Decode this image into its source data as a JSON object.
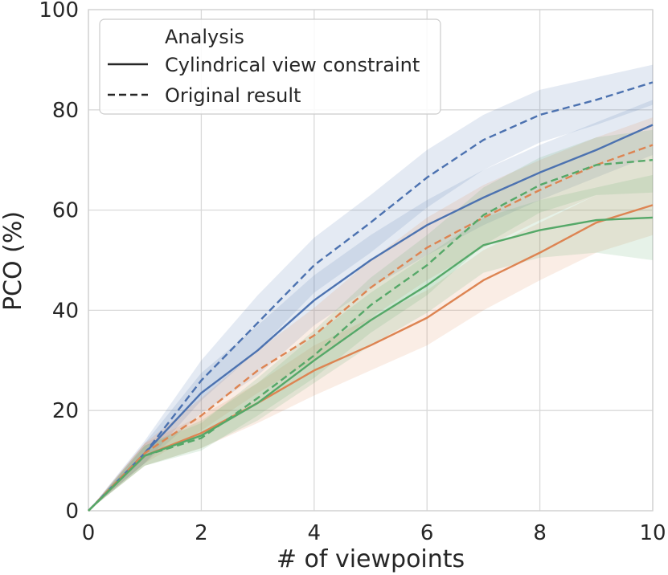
{
  "chart_data": {
    "type": "line",
    "title": "",
    "xlabel": "# of viewpoints",
    "ylabel": "PCO (%)",
    "xlim": [
      0,
      10
    ],
    "ylim": [
      0,
      100
    ],
    "xticks": [
      0,
      2,
      4,
      6,
      8,
      10
    ],
    "yticks": [
      0,
      20,
      40,
      60,
      80,
      100
    ],
    "grid": true,
    "legend": {
      "placement": "top-left",
      "title": "Analysis",
      "entries": [
        {
          "label": "Cylindrical view constraint",
          "style": "solid"
        },
        {
          "label": "Original result",
          "style": "dashed"
        }
      ]
    },
    "series": [
      {
        "color": "#4c72b0",
        "style": "solid",
        "x": [
          0,
          1,
          2,
          3,
          4,
          5,
          6,
          7,
          8,
          9,
          10
        ],
        "values": [
          0,
          11.5,
          23.5,
          32,
          42,
          50,
          57,
          62.5,
          67.5,
          72,
          77
        ],
        "band_low": [
          0,
          9.5,
          19.5,
          27,
          37,
          44.5,
          51,
          57,
          62,
          66.5,
          71
        ],
        "band_high": [
          0,
          13.5,
          27.5,
          37,
          47,
          55,
          62,
          68,
          73,
          77.5,
          82
        ]
      },
      {
        "color": "#4c72b0",
        "style": "dashed",
        "x": [
          0,
          1,
          2,
          3,
          4,
          5,
          6,
          7,
          8,
          9,
          10
        ],
        "values": [
          0,
          11.5,
          26,
          37.5,
          49,
          57.5,
          66.5,
          74,
          79,
          82,
          85.5
        ],
        "band_low": [
          0,
          9.5,
          22,
          32,
          43.5,
          51.5,
          60.5,
          68,
          73.5,
          77,
          81
        ],
        "band_high": [
          0,
          14,
          30,
          43,
          54.5,
          63,
          72,
          79,
          84,
          86.5,
          89
        ]
      },
      {
        "color": "#dd8452",
        "style": "solid",
        "x": [
          0,
          1,
          2,
          3,
          4,
          5,
          6,
          7,
          8,
          9,
          10
        ],
        "values": [
          0,
          11,
          15.5,
          21.5,
          28,
          33,
          38.5,
          46,
          51.5,
          57.5,
          61
        ],
        "band_low": [
          0,
          9,
          12.5,
          17.5,
          23,
          28,
          33,
          40,
          46,
          51.5,
          55
        ],
        "band_high": [
          0,
          13.5,
          19,
          25.5,
          33,
          38.5,
          44,
          52,
          57.5,
          63,
          67
        ]
      },
      {
        "color": "#dd8452",
        "style": "dashed",
        "x": [
          0,
          1,
          2,
          3,
          4,
          5,
          6,
          7,
          8,
          9,
          10
        ],
        "values": [
          0,
          11.5,
          19,
          28,
          35,
          44.5,
          52.5,
          58.5,
          64,
          69,
          73
        ],
        "band_low": [
          0,
          9.5,
          16,
          23.5,
          30,
          38.5,
          46,
          52.5,
          58,
          63,
          67
        ],
        "band_high": [
          0,
          13.5,
          22.5,
          32,
          40.5,
          50,
          58.5,
          65,
          70,
          74.5,
          78.5
        ]
      },
      {
        "color": "#55a868",
        "style": "solid",
        "x": [
          0,
          1,
          2,
          3,
          4,
          5,
          6,
          7,
          8,
          9,
          10
        ],
        "values": [
          0,
          11,
          15,
          21.5,
          30,
          38,
          45,
          53,
          56,
          58,
          58.5
        ],
        "band_low": [
          0,
          9,
          12.5,
          18,
          25.5,
          33,
          39.5,
          47.5,
          50.5,
          51.5,
          50
        ],
        "band_high": [
          0,
          13,
          18,
          25.5,
          35,
          43.5,
          51,
          58.5,
          62,
          64.5,
          67
        ]
      },
      {
        "color": "#55a868",
        "style": "dashed",
        "x": [
          0,
          1,
          2,
          3,
          4,
          5,
          6,
          7,
          8,
          9,
          10
        ],
        "values": [
          0,
          11,
          14.5,
          22.5,
          31,
          41,
          49,
          59,
          65,
          69,
          70
        ],
        "band_low": [
          0,
          9,
          12,
          19,
          26.5,
          35.5,
          43,
          53,
          59.5,
          63,
          63.5
        ],
        "band_high": [
          0,
          13,
          17.5,
          26.5,
          36,
          46.5,
          55,
          64.5,
          70.5,
          74.5,
          76
        ]
      }
    ]
  }
}
